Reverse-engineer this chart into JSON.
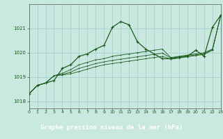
{
  "title": "Graphe pression niveau de la mer (hPa)",
  "background_color": "#c8e8e0",
  "plot_bg_color": "#c8e8e0",
  "bottom_bar_color": "#2d6b2d",
  "grid_color": "#a0cccc",
  "line_color": "#1a5c1a",
  "xlim": [
    0,
    23
  ],
  "ylim": [
    1017.7,
    1022.0
  ],
  "yticks": [
    1018,
    1019,
    1020,
    1021
  ],
  "xticks": [
    0,
    1,
    2,
    3,
    4,
    5,
    6,
    7,
    8,
    9,
    10,
    11,
    12,
    13,
    14,
    15,
    16,
    17,
    18,
    19,
    20,
    21,
    22,
    23
  ],
  "series0": [
    1018.3,
    1018.65,
    1018.75,
    1018.85,
    1019.35,
    1019.5,
    1019.85,
    1019.95,
    1020.15,
    1020.3,
    1021.05,
    1021.28,
    1021.15,
    1020.45,
    1020.15,
    1019.95,
    1019.75,
    1019.75,
    1019.8,
    1019.85,
    1020.1,
    1019.85,
    1021.05,
    1021.55
  ],
  "series1": [
    1018.3,
    1018.65,
    1018.75,
    1019.05,
    1019.15,
    1019.3,
    1019.5,
    1019.6,
    1019.7,
    1019.75,
    1019.85,
    1019.9,
    1019.95,
    1020.0,
    1020.05,
    1020.1,
    1020.15,
    1019.8,
    1019.85,
    1019.9,
    1019.95,
    1020.0,
    1020.15,
    1021.55
  ],
  "series2": [
    1018.3,
    1018.65,
    1018.75,
    1019.05,
    1019.1,
    1019.2,
    1019.35,
    1019.45,
    1019.55,
    1019.62,
    1019.68,
    1019.73,
    1019.78,
    1019.83,
    1019.88,
    1019.93,
    1019.98,
    1019.78,
    1019.83,
    1019.87,
    1019.91,
    1019.96,
    1020.12,
    1021.55
  ],
  "series3": [
    1018.3,
    1018.65,
    1018.75,
    1019.05,
    1019.08,
    1019.13,
    1019.22,
    1019.32,
    1019.42,
    1019.5,
    1019.55,
    1019.6,
    1019.65,
    1019.7,
    1019.75,
    1019.8,
    1019.85,
    1019.73,
    1019.78,
    1019.83,
    1019.88,
    1019.93,
    1020.1,
    1021.55
  ]
}
